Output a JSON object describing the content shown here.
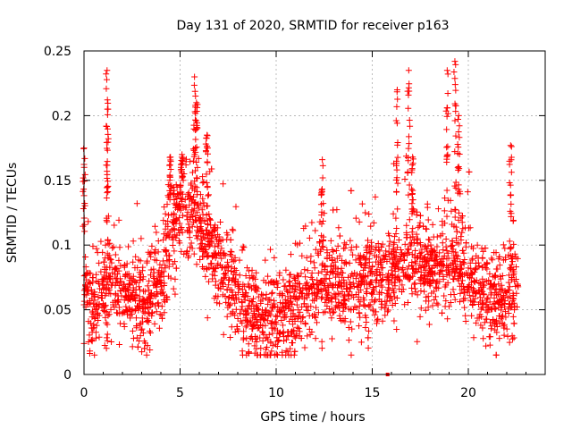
{
  "chart_data": {
    "type": "scatter",
    "title": "Day 131 of 2020, SRMTID for receiver p163",
    "xlabel": "GPS time / hours",
    "ylabel": "SRMTID / TECUs",
    "xlim": [
      0,
      24
    ],
    "ylim": [
      0,
      0.25
    ],
    "xticks": [
      0,
      5,
      10,
      15,
      20
    ],
    "xtick_labels": [
      "0",
      "5",
      "10",
      "15",
      "20"
    ],
    "yticks": [
      0,
      0.05,
      0.1,
      0.15,
      0.2,
      0.25
    ],
    "ytick_labels": [
      "0",
      "0.05",
      "0.1",
      "0.15",
      "0.2",
      "0.25"
    ],
    "grid": true,
    "marker": "+",
    "color": "#ff0000",
    "outlier_point": {
      "x": 15.8,
      "y": 0.0
    },
    "series": [
      {
        "name": "SRMTID",
        "profile": [
          {
            "x": 0.0,
            "y": 0.07
          },
          {
            "x": 0.5,
            "y": 0.045
          },
          {
            "x": 1.0,
            "y": 0.065
          },
          {
            "x": 1.5,
            "y": 0.075
          },
          {
            "x": 2.0,
            "y": 0.065
          },
          {
            "x": 3.0,
            "y": 0.055
          },
          {
            "x": 3.5,
            "y": 0.06
          },
          {
            "x": 4.0,
            "y": 0.07
          },
          {
            "x": 4.5,
            "y": 0.11
          },
          {
            "x": 5.0,
            "y": 0.13
          },
          {
            "x": 5.5,
            "y": 0.12
          },
          {
            "x": 6.0,
            "y": 0.115
          },
          {
            "x": 6.5,
            "y": 0.1
          },
          {
            "x": 7.0,
            "y": 0.085
          },
          {
            "x": 7.5,
            "y": 0.075
          },
          {
            "x": 8.0,
            "y": 0.06
          },
          {
            "x": 8.5,
            "y": 0.045
          },
          {
            "x": 9.0,
            "y": 0.04
          },
          {
            "x": 9.5,
            "y": 0.042
          },
          {
            "x": 10.0,
            "y": 0.045
          },
          {
            "x": 11.0,
            "y": 0.055
          },
          {
            "x": 12.0,
            "y": 0.065
          },
          {
            "x": 13.0,
            "y": 0.07
          },
          {
            "x": 14.0,
            "y": 0.068
          },
          {
            "x": 15.0,
            "y": 0.075
          },
          {
            "x": 16.0,
            "y": 0.08
          },
          {
            "x": 17.0,
            "y": 0.09
          },
          {
            "x": 18.0,
            "y": 0.08
          },
          {
            "x": 19.0,
            "y": 0.085
          },
          {
            "x": 20.0,
            "y": 0.08
          },
          {
            "x": 20.5,
            "y": 0.065
          },
          {
            "x": 21.0,
            "y": 0.06
          },
          {
            "x": 21.5,
            "y": 0.055
          },
          {
            "x": 22.0,
            "y": 0.055
          },
          {
            "x": 22.5,
            "y": 0.065
          }
        ],
        "spread": 0.022,
        "spikes": [
          {
            "x": 0.0,
            "y": 0.175
          },
          {
            "x": 1.2,
            "y": 0.235
          },
          {
            "x": 1.25,
            "y": 0.205
          },
          {
            "x": 4.5,
            "y": 0.168
          },
          {
            "x": 5.1,
            "y": 0.17
          },
          {
            "x": 5.75,
            "y": 0.23
          },
          {
            "x": 5.85,
            "y": 0.21
          },
          {
            "x": 6.4,
            "y": 0.185
          },
          {
            "x": 12.4,
            "y": 0.166
          },
          {
            "x": 16.3,
            "y": 0.22
          },
          {
            "x": 16.9,
            "y": 0.235
          },
          {
            "x": 17.1,
            "y": 0.168
          },
          {
            "x": 18.9,
            "y": 0.235
          },
          {
            "x": 19.3,
            "y": 0.242
          },
          {
            "x": 19.5,
            "y": 0.2
          },
          {
            "x": 22.2,
            "y": 0.177
          }
        ],
        "x_range": [
          0.0,
          22.6
        ],
        "point_count": 2600
      }
    ]
  }
}
